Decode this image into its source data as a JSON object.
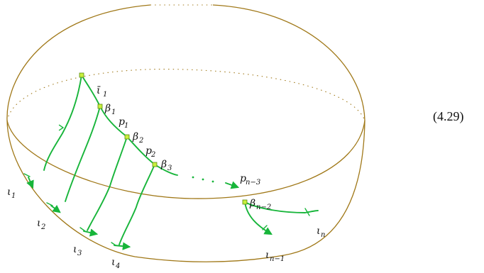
{
  "equation_number": "(4.29)",
  "labels": {
    "iota_bar_1": {
      "base": "ῑ",
      "sub": "1"
    },
    "beta_1": {
      "base": "β",
      "sub": "1"
    },
    "p_1": {
      "base": "p",
      "sub": "1"
    },
    "beta_2": {
      "base": "β",
      "sub": "2"
    },
    "p_2": {
      "base": "p",
      "sub": "2"
    },
    "beta_3": {
      "base": "β",
      "sub": "3"
    },
    "p_n3": {
      "base": "p",
      "sub": "n−3"
    },
    "beta_n2": {
      "base": "β",
      "sub": "n−2"
    },
    "iota_1": {
      "base": "ι",
      "sub": "1"
    },
    "iota_2": {
      "base": "ι",
      "sub": "2"
    },
    "iota_3": {
      "base": "ι",
      "sub": "3"
    },
    "iota_4": {
      "base": "ι",
      "sub": "4"
    },
    "iota_n1": {
      "base": "ι",
      "sub": "n−1"
    },
    "iota_n": {
      "base": "ι",
      "sub": "n"
    }
  },
  "colors": {
    "sphere_outline": "#a07818",
    "curves": "#17b53a",
    "nodes": "#c8f03c"
  }
}
